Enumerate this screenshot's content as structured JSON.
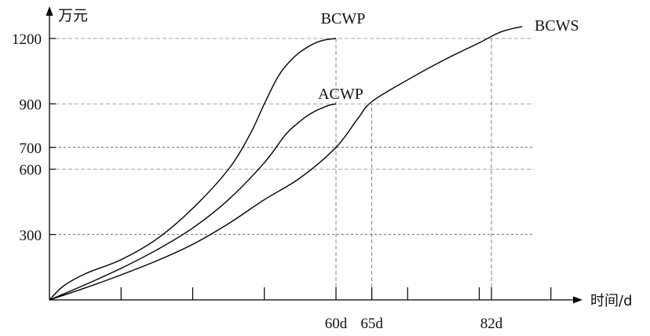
{
  "chart_data": {
    "type": "line",
    "ylabel": "万元",
    "xlabel": "时间/d",
    "y_ticks": [
      300,
      600,
      700,
      900,
      1200
    ],
    "y_tick_labels": [
      "300",
      "600",
      "700",
      "900",
      "1200"
    ],
    "x_ticks": [
      10,
      20,
      30,
      40,
      50,
      60,
      70
    ],
    "x_labeled": [
      {
        "x": 40,
        "label": "60d"
      },
      {
        "x": 45,
        "label": "65d"
      },
      {
        "x": 61.7,
        "label": "82d"
      }
    ],
    "dashed_h": [
      300,
      600,
      700,
      900,
      1200
    ],
    "dashed_v": [
      {
        "x": 40,
        "y": 1200
      },
      {
        "x": 45,
        "y": 900
      },
      {
        "x": 61.7,
        "y": 1200
      }
    ],
    "xlim": [
      0,
      73
    ],
    "ylim": [
      0,
      1240
    ],
    "series": [
      {
        "name": "BCWP",
        "x": [
          0,
          2,
          5,
          10,
          15,
          20,
          25,
          28,
          30,
          32,
          34,
          36,
          38,
          40
        ],
        "y": [
          0,
          65,
          120,
          185,
          280,
          420,
          600,
          760,
          900,
          1030,
          1110,
          1160,
          1190,
          1200
        ]
      },
      {
        "name": "ACWP",
        "x": [
          0,
          5,
          10,
          15,
          20,
          25,
          30,
          33,
          35,
          36,
          37,
          38,
          39,
          40
        ],
        "y": [
          0,
          70,
          145,
          230,
          330,
          460,
          630,
          760,
          820,
          845,
          865,
          880,
          893,
          900
        ]
      },
      {
        "name": "BCWS",
        "x": [
          0,
          5,
          10,
          15,
          20,
          25,
          30,
          35,
          40,
          43,
          45,
          50,
          55,
          60,
          63,
          66
        ],
        "y": [
          0,
          55,
          115,
          180,
          255,
          350,
          460,
          560,
          700,
          830,
          910,
          1010,
          1100,
          1180,
          1230,
          1255
        ]
      }
    ]
  }
}
